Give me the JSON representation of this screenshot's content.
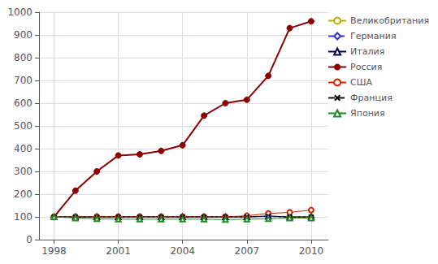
{
  "chart_data": {
    "type": "line",
    "x": [
      1998,
      1999,
      2000,
      2001,
      2002,
      2003,
      2004,
      2005,
      2006,
      2007,
      2008,
      2009,
      2010
    ],
    "series": [
      {
        "name": "Великобритания",
        "color": "#b8b000",
        "marker": "circle",
        "line_style": "solid",
        "values": [
          100,
          100,
          100,
          100,
          100,
          100,
          100,
          100,
          100,
          100,
          105,
          100,
          100
        ]
      },
      {
        "name": "Германия",
        "color": "#3333cc",
        "marker": "diamond",
        "line_style": "dashed",
        "values": [
          100,
          100,
          100,
          100,
          100,
          100,
          100,
          100,
          100,
          100,
          102,
          98,
          98
        ]
      },
      {
        "name": "Италия",
        "color": "#000055",
        "marker": "triangle",
        "line_style": "solid",
        "values": [
          100,
          100,
          100,
          100,
          100,
          100,
          100,
          100,
          100,
          100,
          103,
          100,
          100
        ]
      },
      {
        "name": "Россия",
        "color": "#8b0000",
        "marker": "filled_circle",
        "line_style": "solid",
        "values": [
          100,
          215,
          300,
          370,
          375,
          390,
          415,
          545,
          600,
          615,
          720,
          930,
          960
        ]
      },
      {
        "name": "США",
        "color": "#cc2200",
        "marker": "circle",
        "line_style": "solid",
        "values": [
          100,
          100,
          100,
          100,
          100,
          100,
          100,
          100,
          100,
          105,
          115,
          120,
          130
        ]
      },
      {
        "name": "Франция",
        "color": "#111111",
        "marker": "x",
        "line_style": "dashed",
        "values": [
          100,
          100,
          100,
          100,
          100,
          100,
          100,
          100,
          100,
          100,
          103,
          100,
          100
        ]
      },
      {
        "name": "Япония",
        "color": "#228822",
        "marker": "triangle",
        "line_style": "solid",
        "values": [
          100,
          95,
          92,
          90,
          90,
          90,
          90,
          90,
          88,
          90,
          92,
          95,
          95
        ]
      }
    ],
    "xlim": [
      1997.3,
      2010.8
    ],
    "xticks": [
      1998,
      2001,
      2004,
      2007,
      2010
    ],
    "ylim": [
      0,
      1000
    ],
    "yticks": [
      0,
      100,
      200,
      300,
      400,
      500,
      600,
      700,
      800,
      900,
      1000
    ],
    "grid": true,
    "legend": "upper right"
  }
}
